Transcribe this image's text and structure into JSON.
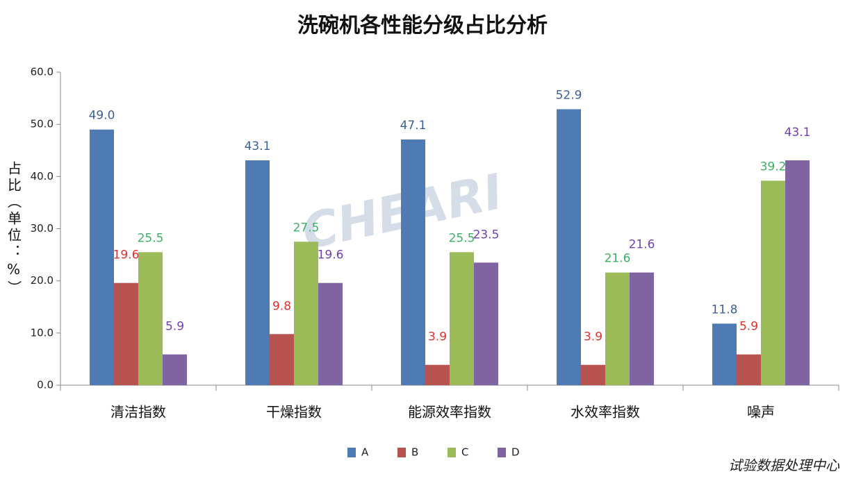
{
  "chart_data": {
    "type": "bar",
    "title": "洗碗机各性能分级占比分析",
    "y_label": "占比（单位：%）",
    "source": "试验数据处理中心",
    "watermark": "CHEARI",
    "categories": [
      "清洁指数",
      "干燥指数",
      "能源效率指数",
      "水效率指数",
      "噪声"
    ],
    "series": [
      {
        "name": "A",
        "color": "#4f7bb5",
        "label_color": "#3d5f95",
        "values": [
          49.0,
          43.1,
          47.1,
          52.9,
          11.8
        ],
        "value_labels": [
          "49.0",
          "43.1",
          "47.1",
          "52.9",
          "11.8"
        ]
      },
      {
        "name": "B",
        "color": "#b85450",
        "label_color": "#e03030",
        "values": [
          19.6,
          9.8,
          3.9,
          3.9,
          5.9
        ]
      },
      {
        "name": "C",
        "color": "#9bbb59",
        "label_color": "#3cb060",
        "values": [
          25.5,
          27.5,
          25.5,
          21.6,
          39.2
        ]
      },
      {
        "name": "D",
        "color": "#8064a2",
        "label_color": "#7040b0",
        "values": [
          5.9,
          19.6,
          23.5,
          21.6,
          43.1
        ]
      }
    ],
    "ylim": [
      0,
      60
    ],
    "yticks": [
      {
        "value": 0,
        "label": "0.0"
      },
      {
        "value": 10,
        "label": "10.0"
      },
      {
        "value": 20,
        "label": "20.0"
      },
      {
        "value": 30,
        "label": "30.0"
      },
      {
        "value": 40,
        "label": "40.0"
      },
      {
        "value": 50,
        "label": "50.0"
      },
      {
        "value": 60,
        "label": "60.0"
      }
    ],
    "grid": false,
    "legend": "bottom"
  }
}
